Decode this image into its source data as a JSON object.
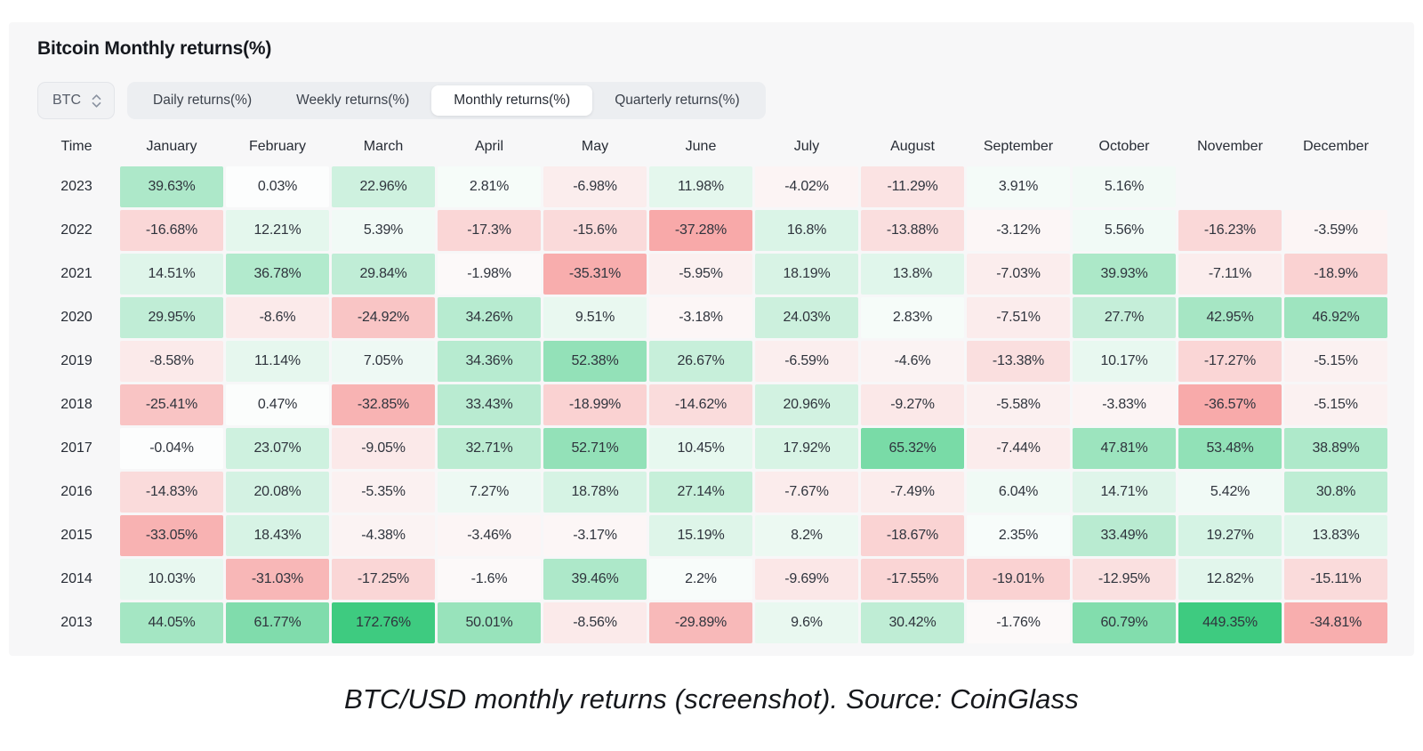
{
  "page": {
    "title": "Bitcoin Monthly returns(%)",
    "caption": "BTC/USD monthly returns (screenshot). Source: CoinGlass"
  },
  "controls": {
    "symbol_select": {
      "value": "BTC"
    },
    "tabs": [
      {
        "label": "Daily returns(%)",
        "active": false
      },
      {
        "label": "Weekly returns(%)",
        "active": false
      },
      {
        "label": "Monthly returns(%)",
        "active": true
      },
      {
        "label": "Quarterly returns(%)",
        "active": false
      }
    ]
  },
  "colors": {
    "positive_base": "#3ecb80",
    "negative_base": "#f68c8c",
    "near_white": "#fcfdfd",
    "card_bg": "#f7f7f8",
    "tabgroup_bg": "#eceef1",
    "active_tab_bg": "#ffffff",
    "cell_text": "#2f343d"
  },
  "chart_data": {
    "type": "heatmap",
    "title": "Bitcoin Monthly returns(%)",
    "unit": "%",
    "time_header": "Time",
    "categories": [
      "January",
      "February",
      "March",
      "April",
      "May",
      "June",
      "July",
      "August",
      "September",
      "October",
      "November",
      "December"
    ],
    "rows": [
      {
        "year": "2023",
        "values": [
          39.63,
          0.03,
          22.96,
          2.81,
          -6.98,
          11.98,
          -4.02,
          -11.29,
          3.91,
          5.16,
          null,
          null
        ]
      },
      {
        "year": "2022",
        "values": [
          -16.68,
          12.21,
          5.39,
          -17.3,
          -15.6,
          -37.28,
          16.8,
          -13.88,
          -3.12,
          5.56,
          -16.23,
          -3.59
        ]
      },
      {
        "year": "2021",
        "values": [
          14.51,
          36.78,
          29.84,
          -1.98,
          -35.31,
          -5.95,
          18.19,
          13.8,
          -7.03,
          39.93,
          -7.11,
          -18.9
        ]
      },
      {
        "year": "2020",
        "values": [
          29.95,
          -8.6,
          -24.92,
          34.26,
          9.51,
          -3.18,
          24.03,
          2.83,
          -7.51,
          27.7,
          42.95,
          46.92
        ]
      },
      {
        "year": "2019",
        "values": [
          -8.58,
          11.14,
          7.05,
          34.36,
          52.38,
          26.67,
          -6.59,
          -4.6,
          -13.38,
          10.17,
          -17.27,
          -5.15
        ]
      },
      {
        "year": "2018",
        "values": [
          -25.41,
          0.47,
          -32.85,
          33.43,
          -18.99,
          -14.62,
          20.96,
          -9.27,
          -5.58,
          -3.83,
          -36.57,
          -5.15
        ]
      },
      {
        "year": "2017",
        "values": [
          -0.04,
          23.07,
          -9.05,
          32.71,
          52.71,
          10.45,
          17.92,
          65.32,
          -7.44,
          47.81,
          53.48,
          38.89
        ]
      },
      {
        "year": "2016",
        "values": [
          -14.83,
          20.08,
          -5.35,
          7.27,
          18.78,
          27.14,
          -7.67,
          -7.49,
          6.04,
          14.71,
          5.42,
          30.8
        ]
      },
      {
        "year": "2015",
        "values": [
          -33.05,
          18.43,
          -4.38,
          -3.46,
          -3.17,
          15.19,
          8.2,
          -18.67,
          2.35,
          33.49,
          19.27,
          13.83
        ]
      },
      {
        "year": "2014",
        "values": [
          10.03,
          -31.03,
          -17.25,
          -1.6,
          39.46,
          2.2,
          -9.69,
          -17.55,
          -19.01,
          -12.95,
          12.82,
          -15.11
        ]
      },
      {
        "year": "2013",
        "values": [
          44.05,
          61.77,
          172.76,
          50.01,
          -8.56,
          -29.89,
          9.6,
          30.42,
          -1.76,
          60.79,
          449.35,
          -34.81
        ]
      }
    ],
    "color_scale": {
      "positive_saturates_at": 95,
      "negative_saturates_at": 50
    },
    "legend": "none",
    "grid": "off"
  }
}
